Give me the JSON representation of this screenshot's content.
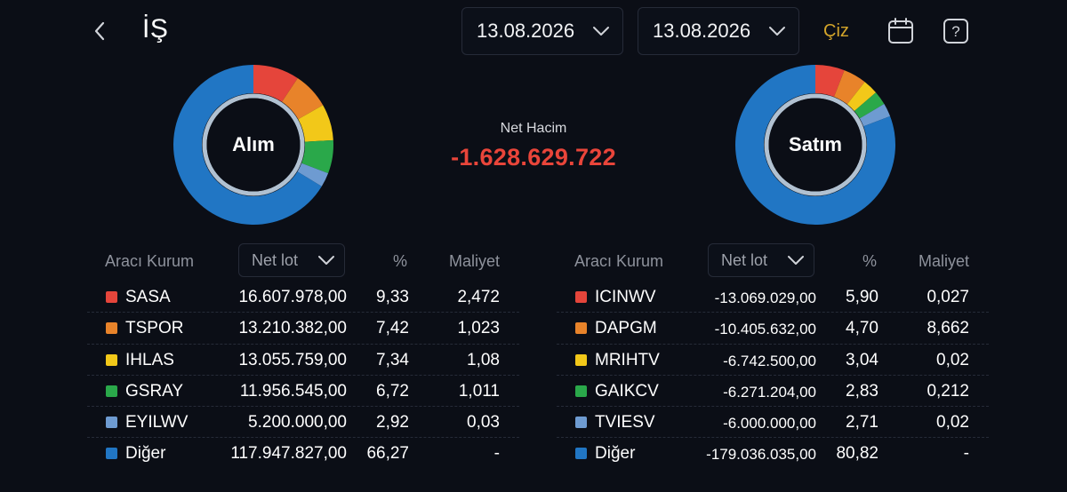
{
  "header": {
    "title": "İŞ",
    "date_start": "13.08.2026",
    "date_end": "13.08.2026",
    "draw_label": "Çiz"
  },
  "colors": {
    "accent": "#d4a52a",
    "negative": "#e9453a",
    "slice_colors": [
      "#e5453b",
      "#e8832a",
      "#f2c819",
      "#2aa84a",
      "#6e9bd1",
      "#2176c4"
    ]
  },
  "buy": {
    "label": "Alım",
    "shares": [
      9.33,
      7.42,
      7.34,
      6.72,
      2.92,
      66.27
    ]
  },
  "sell": {
    "label": "Satım",
    "shares": [
      5.9,
      4.7,
      3.04,
      2.83,
      2.71,
      80.82
    ]
  },
  "net": {
    "label": "Net Hacim",
    "value": "-1.628.629.722"
  },
  "table_headers": {
    "broker": "Aracı Kurum",
    "netlot": "Net lot",
    "pct": "%",
    "cost": "Maliyet"
  },
  "buy_rows": [
    {
      "name": "SASA",
      "lot": "16.607.978,00",
      "pct": "9,33",
      "cost": "2,472"
    },
    {
      "name": "TSPOR",
      "lot": "13.210.382,00",
      "pct": "7,42",
      "cost": "1,023"
    },
    {
      "name": "IHLAS",
      "lot": "13.055.759,00",
      "pct": "7,34",
      "cost": "1,08"
    },
    {
      "name": "GSRAY",
      "lot": "11.956.545,00",
      "pct": "6,72",
      "cost": "1,011"
    },
    {
      "name": "EYILWV",
      "lot": "5.200.000,00",
      "pct": "2,92",
      "cost": "0,03"
    },
    {
      "name": "Diğer",
      "lot": "117.947.827,00",
      "pct": "66,27",
      "cost": "-"
    }
  ],
  "sell_rows": [
    {
      "name": "ICINWV",
      "lot": "-13.069.029,00",
      "pct": "5,90",
      "cost": "0,027"
    },
    {
      "name": "DAPGM",
      "lot": "-10.405.632,00",
      "pct": "4,70",
      "cost": "8,662"
    },
    {
      "name": "MRIHTV",
      "lot": "-6.742.500,00",
      "pct": "3,04",
      "cost": "0,02"
    },
    {
      "name": "GAIKCV",
      "lot": "-6.271.204,00",
      "pct": "2,83",
      "cost": "0,212"
    },
    {
      "name": "TVIESV",
      "lot": "-6.000.000,00",
      "pct": "2,71",
      "cost": "0,02"
    },
    {
      "name": "Diğer",
      "lot": "-179.036.035,00",
      "pct": "80,82",
      "cost": "-"
    }
  ]
}
